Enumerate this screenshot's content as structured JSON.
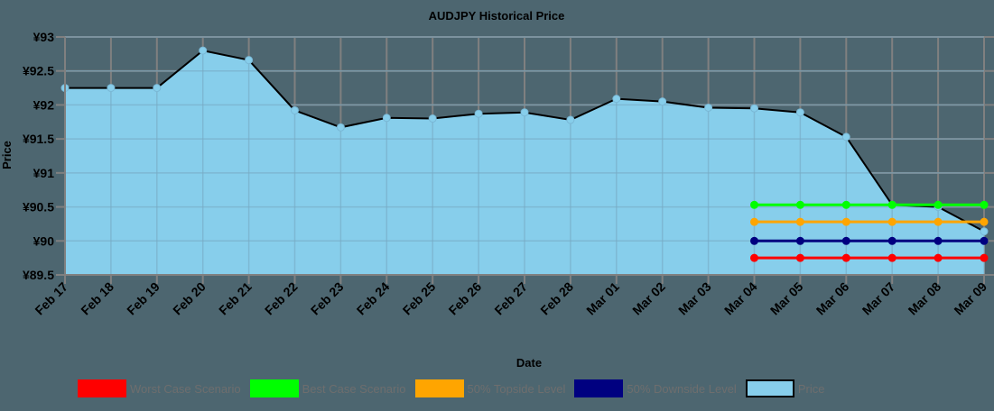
{
  "chart_data": {
    "type": "area",
    "title": "AUDJPY  Historical Price",
    "xlabel": "Date",
    "ylabel": "Price",
    "ylim": [
      89.5,
      93
    ],
    "y_ticks": [
      "¥89.5",
      "¥90",
      "¥90.5",
      "¥91",
      "¥91.5",
      "¥92",
      "¥92.5",
      "¥93"
    ],
    "y_tick_values": [
      89.5,
      90,
      90.5,
      91,
      91.5,
      92,
      92.5,
      93
    ],
    "grid": true,
    "legend_position": "bottom",
    "categories": [
      "Feb 17",
      "Feb 18",
      "Feb 19",
      "Feb 20",
      "Feb 21",
      "Feb 22",
      "Feb 23",
      "Feb 24",
      "Feb 25",
      "Feb 26",
      "Feb 27",
      "Feb 28",
      "Mar 01",
      "Mar 02",
      "Mar 03",
      "Mar 04",
      "Mar 05",
      "Mar 06",
      "Mar 07",
      "Mar 08",
      "Mar 09"
    ],
    "series": [
      {
        "name": "Worst Case Scenario",
        "type": "line",
        "color": "#ff0000",
        "start_index": 15,
        "values": [
          89.75,
          89.75,
          89.75,
          89.75,
          89.75,
          89.75
        ]
      },
      {
        "name": "Best Case Scenario",
        "type": "line",
        "color": "#00ff00",
        "start_index": 15,
        "values": [
          90.53,
          90.53,
          90.53,
          90.53,
          90.53,
          90.53
        ]
      },
      {
        "name": "50% Topside Level",
        "type": "line",
        "color": "#ffa500",
        "start_index": 15,
        "values": [
          90.28,
          90.28,
          90.28,
          90.28,
          90.28,
          90.28
        ]
      },
      {
        "name": "50% Downside Level",
        "type": "line",
        "color": "#000080",
        "start_index": 15,
        "values": [
          90.0,
          90.0,
          90.0,
          90.0,
          90.0,
          90.0
        ]
      },
      {
        "name": "Price",
        "type": "area",
        "color": "#87ceeb",
        "stroke": "#000000",
        "start_index": 0,
        "values": [
          92.25,
          92.25,
          92.25,
          92.8,
          92.66,
          91.92,
          91.67,
          91.81,
          91.8,
          91.87,
          91.89,
          91.78,
          92.09,
          92.05,
          91.96,
          91.95,
          91.89,
          91.53,
          90.53,
          90.5,
          90.14
        ]
      }
    ]
  },
  "legend": [
    {
      "label": "Worst Case Scenario",
      "color": "#ff0000"
    },
    {
      "label": "Best Case Scenario",
      "color": "#00ff00"
    },
    {
      "label": "50% Topside Level",
      "color": "#ffa500"
    },
    {
      "label": "50% Downside Level",
      "color": "#000080"
    },
    {
      "label": "Price",
      "color": "#87ceeb"
    }
  ]
}
